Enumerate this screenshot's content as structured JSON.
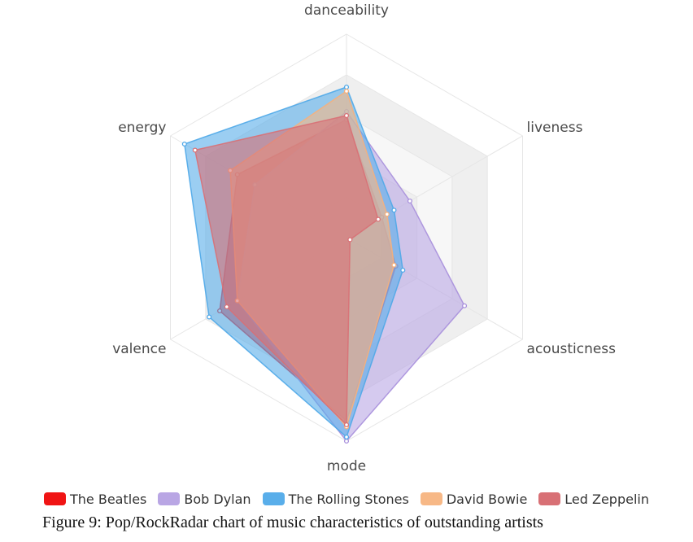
{
  "chart_data": {
    "type": "radar",
    "axes": [
      "danceability",
      "liveness",
      "acousticness",
      "mode",
      "valence",
      "energy"
    ],
    "range": [
      0,
      1
    ],
    "series": [
      {
        "name": "The Beatles",
        "color": "#f01414",
        "fill": "#f01414",
        "values": [
          0.58,
          0.2,
          0.28,
          0.9,
          0.72,
          0.62
        ]
      },
      {
        "name": "Bob Dylan",
        "color": "#a78fdc",
        "fill": "#b9a6e4",
        "values": [
          0.62,
          0.36,
          0.67,
          1.0,
          0.62,
          0.52
        ]
      },
      {
        "name": "The Rolling Stones",
        "color": "#4fa8e8",
        "fill": "#59aeea",
        "values": [
          0.74,
          0.27,
          0.32,
          0.98,
          0.78,
          0.92
        ]
      },
      {
        "name": "David Bowie",
        "color": "#f6b07c",
        "fill": "#f7b886",
        "values": [
          0.72,
          0.23,
          0.27,
          0.93,
          0.62,
          0.66
        ]
      },
      {
        "name": "Led Zeppelin",
        "color": "#d87075",
        "fill": "#d87075",
        "values": [
          0.6,
          0.18,
          0.02,
          0.92,
          0.68,
          0.86
        ]
      }
    ]
  },
  "caption": "Figure 9: Pop/RockRadar chart of music characteristics of outstanding artists"
}
